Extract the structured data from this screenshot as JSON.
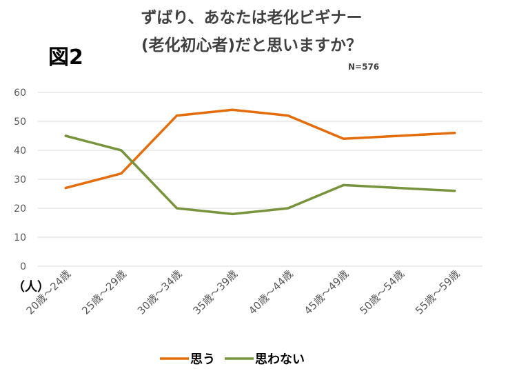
{
  "figure_label": "図2",
  "note": "N=576",
  "chart_data": {
    "type": "line",
    "title_lines": [
      "ずばり、あなたは老化ビギナー",
      "(老化初心者)だと思いますか？"
    ],
    "ylabel": "（人）",
    "xlabel": "",
    "ylim": [
      0,
      60
    ],
    "yticks": [
      0,
      10,
      20,
      30,
      40,
      50,
      60
    ],
    "grid": true,
    "legend_position": "bottom",
    "categories": [
      "20歳～24歳",
      "25歳～29歳",
      "30歳～34歳",
      "35歳～39歳",
      "40歳～44歳",
      "45歳～49歳",
      "50歳～54歳",
      "55歳～59歳"
    ],
    "series": [
      {
        "name": "思う",
        "color": "#E46C0A",
        "values": [
          27,
          32,
          52,
          54,
          52,
          44,
          null,
          46
        ]
      },
      {
        "name": "思わない",
        "color": "#77933C",
        "values": [
          45,
          40,
          20,
          18,
          20,
          28,
          null,
          26
        ]
      }
    ]
  }
}
